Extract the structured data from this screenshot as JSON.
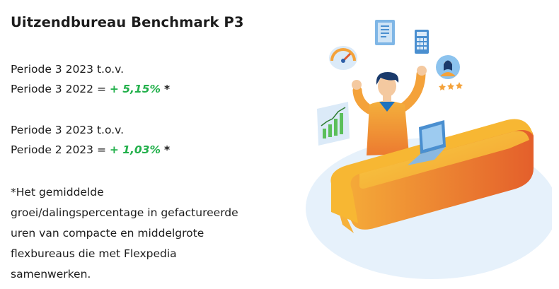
{
  "header": {
    "title": "Uitzendbureau Benchmark P3"
  },
  "comparisons": [
    {
      "line1": "Periode 3 2023 t.o.v.",
      "line2_prefix": "Periode 3 2022 = ",
      "percentage": "+ 5,15%",
      "marker": "*"
    },
    {
      "line1": "Periode 3 2023 t.o.v.",
      "line2_prefix": "Periode 2 2023 = ",
      "percentage": "+ 1,03%",
      "marker": "*"
    }
  ],
  "footnote": {
    "lines": [
      "*Het gemiddelde",
      "groei/dalingspercentage in gefactureerde",
      "uren van compacte en middelgrote",
      "flexbureaus die met Flexpedia",
      "samenwerken."
    ]
  },
  "colors": {
    "positive": "#22b04b",
    "desk_top": "#f7b733",
    "desk_side": "#e8732f",
    "floor": "#e6f1fb",
    "shirt": "#f0a030",
    "hair": "#1a3a6b"
  },
  "icons": [
    "speedometer-icon",
    "document-icon",
    "calculator-icon",
    "user-avatar-icon",
    "rating-stars-icon",
    "growth-chart-icon",
    "laptop-icon"
  ]
}
